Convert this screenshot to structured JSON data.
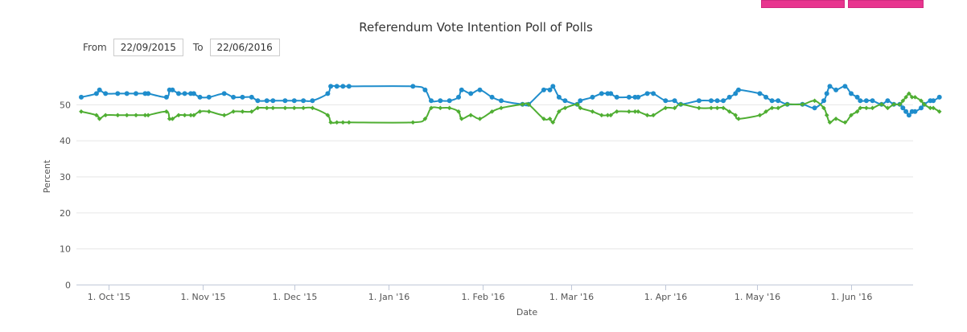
{
  "chart_data": {
    "type": "line",
    "title": "Referendum Vote Intention Poll of Polls",
    "xlabel": "Date",
    "ylabel": "Percent",
    "x_range": [
      "2015-09-22",
      "2016-06-22"
    ],
    "ylim": [
      0,
      60
    ],
    "y_ticks": [
      0,
      10,
      20,
      30,
      40,
      50
    ],
    "x_tick_labels": [
      {
        "date": "2015-10-01",
        "label": "1. Oct '15"
      },
      {
        "date": "2015-11-01",
        "label": "1. Nov '15"
      },
      {
        "date": "2015-12-01",
        "label": "1. Dec '15"
      },
      {
        "date": "2016-01-01",
        "label": "1. Jan '16"
      },
      {
        "date": "2016-02-01",
        "label": "1. Feb '16"
      },
      {
        "date": "2016-03-01",
        "label": "1. Mar '16"
      },
      {
        "date": "2016-04-01",
        "label": "1. Apr '16"
      },
      {
        "date": "2016-05-01",
        "label": "1. May '16"
      },
      {
        "date": "2016-06-01",
        "label": "1. Jun '16"
      }
    ],
    "grid": true,
    "series": [
      {
        "color": "#1f8dcc",
        "marker": "circle",
        "points": [
          [
            "2015-09-22",
            52
          ],
          [
            "2015-09-27",
            53
          ],
          [
            "2015-09-28",
            54
          ],
          [
            "2015-09-30",
            53
          ],
          [
            "2015-10-04",
            53
          ],
          [
            "2015-10-07",
            53
          ],
          [
            "2015-10-10",
            53
          ],
          [
            "2015-10-13",
            53
          ],
          [
            "2015-10-14",
            53
          ],
          [
            "2015-10-20",
            52
          ],
          [
            "2015-10-21",
            54
          ],
          [
            "2015-10-22",
            54
          ],
          [
            "2015-10-24",
            53
          ],
          [
            "2015-10-26",
            53
          ],
          [
            "2015-10-28",
            53
          ],
          [
            "2015-10-29",
            53
          ],
          [
            "2015-10-31",
            52
          ],
          [
            "2015-11-03",
            52
          ],
          [
            "2015-11-08",
            53
          ],
          [
            "2015-11-11",
            52
          ],
          [
            "2015-11-14",
            52
          ],
          [
            "2015-11-17",
            52
          ],
          [
            "2015-11-19",
            51
          ],
          [
            "2015-11-22",
            51
          ],
          [
            "2015-11-24",
            51
          ],
          [
            "2015-11-28",
            51
          ],
          [
            "2015-12-01",
            51
          ],
          [
            "2015-12-04",
            51
          ],
          [
            "2015-12-07",
            51
          ],
          [
            "2015-12-12",
            53
          ],
          [
            "2015-12-13",
            55
          ],
          [
            "2015-12-15",
            55
          ],
          [
            "2015-12-17",
            55
          ],
          [
            "2015-12-19",
            55
          ],
          [
            "2016-01-09",
            55
          ],
          [
            "2016-01-13",
            54
          ],
          [
            "2016-01-15",
            51
          ],
          [
            "2016-01-18",
            51
          ],
          [
            "2016-01-21",
            51
          ],
          [
            "2016-01-24",
            52
          ],
          [
            "2016-01-25",
            54
          ],
          [
            "2016-01-28",
            53
          ],
          [
            "2016-01-31",
            54
          ],
          [
            "2016-02-04",
            52
          ],
          [
            "2016-02-07",
            51
          ],
          [
            "2016-02-14",
            50
          ],
          [
            "2016-02-16",
            50
          ],
          [
            "2016-02-21",
            54
          ],
          [
            "2016-02-23",
            54
          ],
          [
            "2016-02-24",
            55
          ],
          [
            "2016-02-26",
            52
          ],
          [
            "2016-02-28",
            51
          ],
          [
            "2016-03-03",
            50
          ],
          [
            "2016-03-04",
            51
          ],
          [
            "2016-03-08",
            52
          ],
          [
            "2016-03-11",
            53
          ],
          [
            "2016-03-13",
            53
          ],
          [
            "2016-03-14",
            53
          ],
          [
            "2016-03-16",
            52
          ],
          [
            "2016-03-20",
            52
          ],
          [
            "2016-03-22",
            52
          ],
          [
            "2016-03-23",
            52
          ],
          [
            "2016-03-26",
            53
          ],
          [
            "2016-03-28",
            53
          ],
          [
            "2016-04-01",
            51
          ],
          [
            "2016-04-04",
            51
          ],
          [
            "2016-04-06",
            50
          ],
          [
            "2016-04-12",
            51
          ],
          [
            "2016-04-16",
            51
          ],
          [
            "2016-04-18",
            51
          ],
          [
            "2016-04-20",
            51
          ],
          [
            "2016-04-22",
            52
          ],
          [
            "2016-04-24",
            53
          ],
          [
            "2016-04-25",
            54
          ],
          [
            "2016-05-02",
            53
          ],
          [
            "2016-05-04",
            52
          ],
          [
            "2016-05-06",
            51
          ],
          [
            "2016-05-08",
            51
          ],
          [
            "2016-05-11",
            50
          ],
          [
            "2016-05-16",
            50
          ],
          [
            "2016-05-20",
            49
          ],
          [
            "2016-05-23",
            51
          ],
          [
            "2016-05-24",
            53
          ],
          [
            "2016-05-25",
            55
          ],
          [
            "2016-05-27",
            54
          ],
          [
            "2016-05-30",
            55
          ],
          [
            "2016-06-01",
            53
          ],
          [
            "2016-06-03",
            52
          ],
          [
            "2016-06-04",
            51
          ],
          [
            "2016-06-06",
            51
          ],
          [
            "2016-06-08",
            51
          ],
          [
            "2016-06-11",
            50
          ],
          [
            "2016-06-13",
            51
          ],
          [
            "2016-06-15",
            50
          ],
          [
            "2016-06-17",
            50
          ],
          [
            "2016-06-18",
            49
          ],
          [
            "2016-06-19",
            48
          ],
          [
            "2016-06-20",
            47
          ],
          [
            "2016-06-21",
            48
          ],
          [
            "2016-06-22",
            48
          ],
          [
            "2016-06-24",
            49
          ],
          [
            "2016-06-25",
            50
          ],
          [
            "2016-06-27",
            51
          ],
          [
            "2016-06-28",
            51
          ],
          [
            "2016-06-30",
            52
          ]
        ]
      },
      {
        "color": "#4fae32",
        "marker": "diamond",
        "points": [
          [
            "2015-09-22",
            48
          ],
          [
            "2015-09-27",
            47
          ],
          [
            "2015-09-28",
            46
          ],
          [
            "2015-09-30",
            47
          ],
          [
            "2015-10-04",
            47
          ],
          [
            "2015-10-07",
            47
          ],
          [
            "2015-10-10",
            47
          ],
          [
            "2015-10-13",
            47
          ],
          [
            "2015-10-14",
            47
          ],
          [
            "2015-10-20",
            48
          ],
          [
            "2015-10-21",
            46
          ],
          [
            "2015-10-22",
            46
          ],
          [
            "2015-10-24",
            47
          ],
          [
            "2015-10-26",
            47
          ],
          [
            "2015-10-28",
            47
          ],
          [
            "2015-10-29",
            47
          ],
          [
            "2015-10-31",
            48
          ],
          [
            "2015-11-03",
            48
          ],
          [
            "2015-11-08",
            47
          ],
          [
            "2015-11-11",
            48
          ],
          [
            "2015-11-14",
            48
          ],
          [
            "2015-11-17",
            48
          ],
          [
            "2015-11-19",
            49
          ],
          [
            "2015-11-22",
            49
          ],
          [
            "2015-11-24",
            49
          ],
          [
            "2015-11-28",
            49
          ],
          [
            "2015-12-01",
            49
          ],
          [
            "2015-12-04",
            49
          ],
          [
            "2015-12-07",
            49
          ],
          [
            "2015-12-12",
            47
          ],
          [
            "2015-12-13",
            45
          ],
          [
            "2015-12-15",
            45
          ],
          [
            "2015-12-17",
            45
          ],
          [
            "2015-12-19",
            45
          ],
          [
            "2016-01-09",
            45
          ],
          [
            "2016-01-13",
            46
          ],
          [
            "2016-01-15",
            49
          ],
          [
            "2016-01-18",
            49
          ],
          [
            "2016-01-21",
            49
          ],
          [
            "2016-01-24",
            48
          ],
          [
            "2016-01-25",
            46
          ],
          [
            "2016-01-28",
            47
          ],
          [
            "2016-01-31",
            46
          ],
          [
            "2016-02-04",
            48
          ],
          [
            "2016-02-07",
            49
          ],
          [
            "2016-02-14",
            50
          ],
          [
            "2016-02-16",
            50
          ],
          [
            "2016-02-21",
            46
          ],
          [
            "2016-02-23",
            46
          ],
          [
            "2016-02-24",
            45
          ],
          [
            "2016-02-26",
            48
          ],
          [
            "2016-02-28",
            49
          ],
          [
            "2016-03-03",
            50
          ],
          [
            "2016-03-04",
            49
          ],
          [
            "2016-03-08",
            48
          ],
          [
            "2016-03-11",
            47
          ],
          [
            "2016-03-13",
            47
          ],
          [
            "2016-03-14",
            47
          ],
          [
            "2016-03-16",
            48
          ],
          [
            "2016-03-20",
            48
          ],
          [
            "2016-03-22",
            48
          ],
          [
            "2016-03-23",
            48
          ],
          [
            "2016-03-26",
            47
          ],
          [
            "2016-03-28",
            47
          ],
          [
            "2016-04-01",
            49
          ],
          [
            "2016-04-04",
            49
          ],
          [
            "2016-04-06",
            50
          ],
          [
            "2016-04-12",
            49
          ],
          [
            "2016-04-16",
            49
          ],
          [
            "2016-04-18",
            49
          ],
          [
            "2016-04-20",
            49
          ],
          [
            "2016-04-22",
            48
          ],
          [
            "2016-04-24",
            47
          ],
          [
            "2016-04-25",
            46
          ],
          [
            "2016-05-02",
            47
          ],
          [
            "2016-05-04",
            48
          ],
          [
            "2016-05-06",
            49
          ],
          [
            "2016-05-08",
            49
          ],
          [
            "2016-05-11",
            50
          ],
          [
            "2016-05-16",
            50
          ],
          [
            "2016-05-20",
            51
          ],
          [
            "2016-05-23",
            49
          ],
          [
            "2016-05-24",
            47
          ],
          [
            "2016-05-25",
            45
          ],
          [
            "2016-05-27",
            46
          ],
          [
            "2016-05-30",
            45
          ],
          [
            "2016-06-01",
            47
          ],
          [
            "2016-06-03",
            48
          ],
          [
            "2016-06-04",
            49
          ],
          [
            "2016-06-06",
            49
          ],
          [
            "2016-06-08",
            49
          ],
          [
            "2016-06-11",
            50
          ],
          [
            "2016-06-13",
            49
          ],
          [
            "2016-06-15",
            50
          ],
          [
            "2016-06-17",
            50
          ],
          [
            "2016-06-18",
            51
          ],
          [
            "2016-06-19",
            52
          ],
          [
            "2016-06-20",
            53
          ],
          [
            "2016-06-21",
            52
          ],
          [
            "2016-06-22",
            52
          ],
          [
            "2016-06-24",
            51
          ],
          [
            "2016-06-25",
            50
          ],
          [
            "2016-06-27",
            49
          ],
          [
            "2016-06-28",
            49
          ],
          [
            "2016-06-30",
            48
          ]
        ]
      }
    ]
  },
  "controls": {
    "from_label": "From",
    "from_value": "22/09/2015",
    "to_label": "To",
    "to_value": "22/06/2016"
  }
}
